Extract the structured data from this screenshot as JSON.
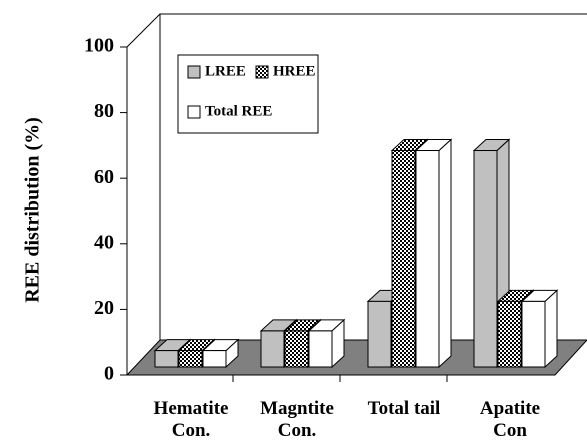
{
  "chart_data": {
    "type": "bar3d",
    "y_label": "REE distribution (%)",
    "categories": [
      "Hematite\nCon.",
      "Magntite\nCon.",
      "Total tail",
      "Apatite\nCon"
    ],
    "series": [
      {
        "name": "LREE",
        "color": "#c0c0c0",
        "values": [
          5,
          11,
          20,
          66
        ]
      },
      {
        "name": "HREE",
        "color": "checker",
        "values": [
          5,
          11,
          66,
          20
        ]
      },
      {
        "name": "Total REE",
        "color": "#ffffff",
        "values": [
          5,
          11,
          66,
          20
        ]
      }
    ],
    "ylim": [
      0,
      100
    ],
    "yticks": [
      0,
      20,
      40,
      60,
      80,
      100
    ]
  }
}
